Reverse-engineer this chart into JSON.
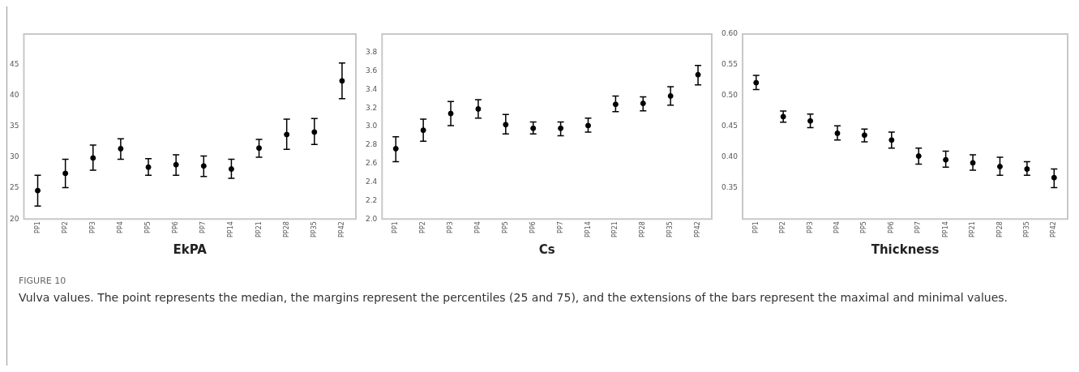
{
  "chart_data": [
    {
      "type": "scatter",
      "xlabel": "EkPA",
      "categories": [
        "PP1",
        "PP2",
        "PP3",
        "PP4",
        "PP5",
        "PP6",
        "PP7",
        "PP14",
        "PP21",
        "PP28",
        "PP35",
        "PP42"
      ],
      "series": [
        {
          "color": "#000000",
          "values": [
            24.6,
            27.4,
            29.9,
            31.4,
            28.4,
            28.8,
            28.6,
            28.1,
            31.5,
            33.7,
            34.1,
            42.4
          ],
          "errors": [
            [
              22.1,
              27.1
            ],
            [
              25.1,
              29.7
            ],
            [
              27.9,
              32.0
            ],
            [
              29.7,
              33.0
            ],
            [
              27.1,
              29.8
            ],
            [
              27.1,
              30.4
            ],
            [
              26.9,
              30.2
            ],
            [
              26.6,
              29.7
            ],
            [
              30.0,
              32.9
            ],
            [
              31.3,
              36.2
            ],
            [
              32.1,
              36.3
            ],
            [
              39.5,
              45.3
            ]
          ]
        }
      ],
      "ylim": [
        20,
        50
      ],
      "yticks": [
        20,
        25,
        30,
        35,
        40,
        45
      ],
      "marker": "circle",
      "grid": false,
      "legend": false,
      "annotations": [
        "FIGURE 10",
        "Vulva values. The point represents the median, the margins represent the percentiles (25 and 75), and the extensions of the bars represent the maximal and minimal values."
      ]
    },
    {
      "type": "scatter",
      "xlabel": "Cs",
      "categories": [
        "PP1",
        "PP2",
        "PP3",
        "PP4",
        "PP5",
        "PP6",
        "PP7",
        "PP14",
        "PP21",
        "PP28",
        "PP35",
        "PP42"
      ],
      "series": [
        {
          "color": "#000000",
          "values": [
            2.76,
            2.96,
            3.14,
            3.19,
            3.02,
            2.98,
            2.98,
            3.01,
            3.24,
            3.25,
            3.33,
            3.56
          ],
          "errors": [
            [
              2.62,
              2.89
            ],
            [
              2.84,
              3.08
            ],
            [
              3.01,
              3.27
            ],
            [
              3.09,
              3.29
            ],
            [
              2.92,
              3.13
            ],
            [
              2.92,
              3.05
            ],
            [
              2.9,
              3.05
            ],
            [
              2.94,
              3.09
            ],
            [
              3.16,
              3.33
            ],
            [
              3.17,
              3.32
            ],
            [
              3.23,
              3.43
            ],
            [
              3.45,
              3.66
            ]
          ]
        }
      ],
      "ylim": [
        2,
        4
      ],
      "yticks": [
        {
          "value": 2,
          "label": "2.0"
        },
        {
          "value": 2.2,
          "label": "2.2"
        },
        {
          "value": 2.4,
          "label": "2.4"
        },
        {
          "value": 2.6,
          "label": "2.6"
        },
        {
          "value": 2.8,
          "label": "2.8"
        },
        {
          "value": 3,
          "label": "3.0"
        },
        {
          "value": 3.2,
          "label": "3.2"
        },
        {
          "value": 3.4,
          "label": "3.4"
        },
        {
          "value": 3.6,
          "label": "3.6"
        },
        {
          "value": 3.8,
          "label": "3.8"
        }
      ],
      "marker": "circle",
      "grid": false,
      "legend": false
    },
    {
      "type": "scatter",
      "xlabel": "Thickness",
      "categories": [
        "PP1",
        "PP2",
        "PP3",
        "PP4",
        "PP5",
        "PP6",
        "PP7",
        "PP14",
        "PP21",
        "PP28",
        "PP35",
        "PP42"
      ],
      "series": [
        {
          "color": "#000000",
          "values": [
            0.521,
            0.466,
            0.459,
            0.439,
            0.436,
            0.428,
            0.402,
            0.396,
            0.391,
            0.385,
            0.381,
            0.367
          ],
          "errors": [
            [
              0.51,
              0.533
            ],
            [
              0.457,
              0.475
            ],
            [
              0.448,
              0.47
            ],
            [
              0.428,
              0.451
            ],
            [
              0.425,
              0.446
            ],
            [
              0.415,
              0.441
            ],
            [
              0.389,
              0.415
            ],
            [
              0.384,
              0.41
            ],
            [
              0.379,
              0.404
            ],
            [
              0.371,
              0.4
            ],
            [
              0.371,
              0.393
            ],
            [
              0.351,
              0.381
            ]
          ]
        }
      ],
      "ylim": [
        0.3,
        0.6
      ],
      "yticks": [
        {
          "value": 0.35,
          "label": "0.35"
        },
        {
          "value": 0.4,
          "label": "0.40"
        },
        {
          "value": 0.45,
          "label": "0.45"
        },
        {
          "value": 0.5,
          "label": "0.50"
        },
        {
          "value": 0.55,
          "label": "0.55"
        },
        {
          "value": 0.6,
          "label": "0.60"
        }
      ],
      "marker": "circle",
      "grid": false,
      "legend": false
    }
  ]
}
